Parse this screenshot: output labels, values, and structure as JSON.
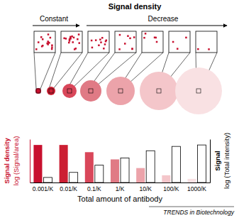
{
  "chart_data": {
    "type": "bar",
    "title": "Signal density",
    "annotations": [
      "Constant",
      "Decrease"
    ],
    "categories": [
      "0.001/K",
      "0.01/K",
      "0.1/K",
      "1/K",
      "10/K",
      "100/K",
      "1000/K"
    ],
    "x_label": "Total amount of antibody",
    "y_label": [
      "Signal density",
      "log (Signal/area)"
    ],
    "y2_label": [
      "Signal",
      "log (Total intensity)"
    ],
    "ylim": [
      0,
      60
    ],
    "y2lim": [
      0,
      60
    ],
    "tick_labels": "x",
    "series": [
      {
        "colors": [
          "#c8102e",
          "#cc1f33",
          "#d9475a",
          "#e07a85",
          "#eca3aa",
          "#f4c6ca",
          "#f9e1e3"
        ],
        "values": [
          52,
          52,
          42,
          32,
          20,
          10,
          5
        ]
      },
      {
        "color": "#ffffff",
        "axis": "y2",
        "values": [
          7,
          14,
          24,
          34,
          44,
          50,
          52
        ]
      }
    ],
    "source": "TRENDS in Biotechnology"
  }
}
